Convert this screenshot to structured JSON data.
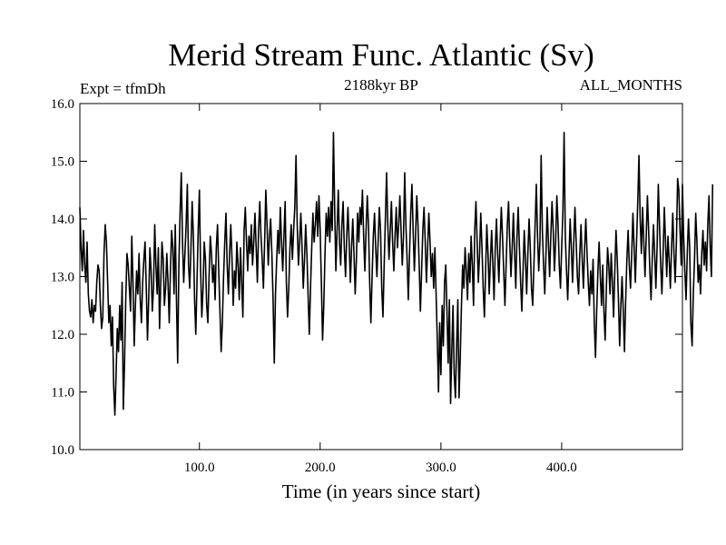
{
  "chart_data": {
    "type": "line",
    "title": "Merid Stream Func. Atlantic (Sv)",
    "subtitle_left": "Expt = tfmDh",
    "subtitle_center": "2188kyr BP",
    "subtitle_right": "ALL_MONTHS",
    "xlabel": "Time (in years since start)",
    "ylabel": "",
    "xlim": [
      1,
      500
    ],
    "ylim": [
      10.0,
      16.0
    ],
    "x_ticks": [
      100,
      200,
      300,
      400
    ],
    "x_tick_labels": [
      "100.0",
      "200.0",
      "300.0",
      "400.0"
    ],
    "y_ticks": [
      10,
      11,
      12,
      13,
      14,
      15,
      16
    ],
    "y_tick_labels": [
      "10.0",
      "11.0",
      "12.0",
      "13.0",
      "14.0",
      "15.0",
      "16.0"
    ],
    "grid": false,
    "series": [
      {
        "name": "Merid Stream Func. Atlantic",
        "x_start": 1,
        "x_step": 1,
        "values": [
          14.2,
          13.5,
          13.1,
          13.8,
          13.2,
          12.9,
          13.6,
          12.7,
          12.4,
          12.3,
          12.6,
          12.2,
          12.5,
          12.4,
          12.9,
          13.2,
          13.1,
          12.5,
          12.1,
          12.3,
          13.4,
          13.9,
          13.6,
          12.9,
          12.2,
          12.5,
          11.8,
          12.3,
          11.1,
          10.6,
          11.3,
          12.1,
          11.7,
          12.5,
          11.9,
          12.9,
          10.7,
          11.5,
          12.6,
          13.4,
          13.2,
          12.8,
          12.4,
          13.7,
          12.9,
          11.8,
          12.5,
          13.1,
          12.7,
          13.4,
          12.6,
          12.2,
          12.9,
          13.3,
          13.6,
          12.8,
          11.9,
          12.6,
          13.5,
          13.1,
          12.4,
          12.8,
          13.9,
          13.2,
          12.7,
          13.5,
          12.1,
          12.9,
          13.6,
          13.3,
          12.5,
          12.8,
          13.4,
          12.9,
          12.2,
          13.1,
          13.8,
          13.5,
          12.7,
          13.9,
          12.6,
          11.5,
          13.2,
          14.1,
          14.8,
          13.6,
          12.9,
          13.4,
          13.9,
          14.6,
          13.2,
          12.8,
          13.5,
          14.3,
          13.7,
          12.6,
          12.0,
          12.9,
          13.8,
          14.5,
          13.1,
          12.3,
          12.8,
          13.6,
          13.3,
          12.5,
          12.2,
          13.0,
          13.7,
          13.4,
          12.9,
          13.2,
          12.6,
          13.5,
          13.9,
          13.1,
          12.4,
          11.7,
          12.2,
          13.0,
          13.6,
          14.1,
          13.2,
          12.7,
          13.4,
          13.9,
          13.3,
          12.5,
          13.1,
          12.8,
          13.6,
          13.2,
          12.6,
          13.5,
          12.9,
          12.3,
          13.8,
          14.2,
          13.6,
          13.1,
          13.7,
          13.4,
          13.9,
          13.2,
          13.6,
          14.1,
          13.5,
          12.9,
          13.8,
          14.3,
          13.7,
          13.3,
          12.8,
          13.6,
          14.5,
          13.9,
          13.2,
          13.7,
          14.0,
          13.4,
          12.6,
          11.5,
          12.7,
          13.3,
          13.8,
          13.4,
          14.2,
          13.6,
          13.1,
          13.7,
          14.3,
          12.9,
          12.3,
          12.8,
          13.5,
          13.9,
          13.3,
          13.8,
          14.2,
          15.1,
          13.9,
          13.2,
          13.6,
          14.1,
          13.5,
          12.8,
          13.3,
          13.9,
          13.4,
          12.7,
          12.0,
          12.8,
          13.5,
          14.1,
          13.6,
          13.9,
          14.3,
          13.7,
          14.4,
          13.8,
          12.9,
          11.9,
          12.5,
          13.4,
          14.1,
          13.7,
          14.2,
          13.6,
          14.3,
          13.8,
          15.5,
          14.2,
          13.1,
          13.8,
          14.5,
          13.6,
          13.2,
          13.9,
          14.3,
          13.5,
          13.0,
          13.7,
          14.2,
          13.6,
          12.9,
          13.5,
          14.0,
          13.4,
          12.7,
          13.3,
          14.1,
          13.6,
          14.2,
          13.9,
          14.5,
          13.7,
          13.1,
          13.8,
          14.4,
          13.9,
          12.9,
          12.2,
          13.0,
          13.7,
          14.1,
          13.5,
          13.0,
          13.6,
          14.2,
          13.8,
          12.8,
          12.3,
          13.2,
          14.0,
          14.8,
          13.9,
          13.3,
          13.8,
          14.3,
          13.6,
          13.1,
          13.7,
          14.2,
          13.5,
          13.9,
          14.4,
          13.8,
          13.2,
          13.7,
          14.8,
          13.9,
          13.3,
          12.6,
          13.4,
          14.1,
          14.6,
          13.8,
          13.1,
          13.7,
          14.4,
          13.9,
          13.2,
          12.4,
          13.1,
          13.8,
          14.2,
          13.6,
          12.9,
          13.5,
          14.1,
          13.6,
          13.0,
          13.4,
          12.8,
          13.5,
          12.7,
          11.9,
          11.0,
          12.2,
          11.3,
          12.5,
          11.8,
          12.9,
          13.2,
          12.4,
          11.5,
          12.6,
          10.8,
          11.7,
          12.5,
          11.3,
          10.9,
          11.8,
          12.6,
          10.9,
          11.6,
          12.5,
          13.2,
          12.8,
          13.5,
          13.1,
          12.6,
          13.4,
          12.9,
          13.7,
          13.2,
          12.5,
          13.8,
          14.3,
          13.6,
          12.9,
          13.4,
          14.1,
          13.5,
          12.8,
          12.3,
          13.1,
          13.9,
          13.4,
          12.7,
          13.3,
          13.8,
          13.2,
          12.6,
          13.5,
          14.0,
          13.4,
          12.9,
          13.6,
          14.2,
          13.7,
          13.1,
          12.5,
          13.2,
          13.9,
          14.3,
          13.6,
          13.0,
          13.5,
          14.1,
          13.4,
          12.8,
          13.7,
          14.2,
          13.5,
          12.9,
          12.4,
          13.1,
          13.8,
          13.3,
          12.7,
          13.4,
          14.0,
          13.5,
          12.8,
          12.5,
          13.2,
          13.9,
          14.6,
          13.7,
          13.1,
          13.6,
          15.1,
          13.8,
          13.2,
          12.7,
          13.4,
          14.2,
          13.6,
          13.0,
          13.7,
          14.3,
          13.8,
          13.1,
          13.6,
          14.4,
          13.9,
          13.2,
          12.8,
          13.5,
          14.1,
          15.5,
          13.7,
          13.1,
          12.6,
          13.3,
          14.0,
          13.5,
          12.9,
          13.6,
          14.2,
          13.6,
          13.0,
          12.7,
          13.4,
          13.9,
          13.3,
          12.8,
          13.5,
          14.0,
          13.4,
          12.9,
          12.5,
          13.1,
          12.7,
          13.3,
          12.2,
          11.6,
          12.4,
          13.1,
          13.6,
          13.0,
          12.5,
          13.2,
          12.4,
          11.9,
          12.8,
          13.5,
          13.2,
          12.7,
          13.4,
          12.9,
          12.3,
          13.1,
          13.8,
          13.3,
          12.6,
          11.8,
          12.5,
          13.0,
          12.4,
          11.7,
          12.6,
          13.3,
          13.8,
          13.2,
          12.8,
          13.4,
          14.1,
          13.5,
          12.9,
          13.6,
          14.3,
          15.1,
          14.0,
          13.4,
          14.2,
          13.6,
          13.0,
          13.7,
          14.4,
          13.8,
          13.1,
          12.6,
          13.3,
          13.9,
          13.4,
          12.8,
          13.5,
          14.6,
          13.9,
          13.2,
          12.7,
          13.4,
          14.2,
          13.6,
          13.0,
          13.7,
          13.3,
          12.8,
          13.5,
          14.1,
          13.4,
          12.9,
          13.6,
          14.7,
          14.5,
          13.8,
          13.2,
          14.6,
          13.7,
          13.1,
          12.6,
          13.4,
          14.0,
          13.5,
          12.2,
          11.8,
          12.7,
          13.3,
          14.1,
          13.6,
          12.9,
          13.2,
          12.7,
          13.4,
          13.8,
          13.2,
          13.6,
          13.1,
          13.9,
          14.4,
          13.5,
          13.0,
          14.6
        ]
      }
    ]
  }
}
